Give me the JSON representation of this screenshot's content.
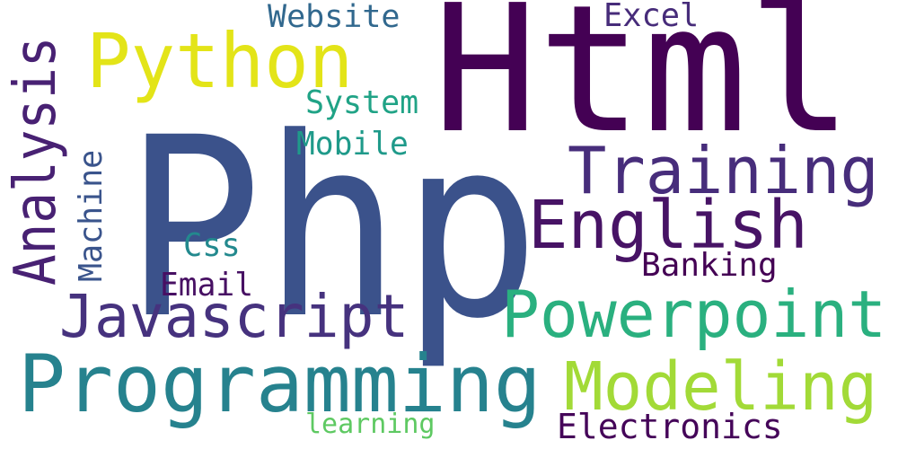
{
  "words": [
    {
      "key": "html",
      "text": "Html",
      "color": "#440154"
    },
    {
      "key": "php",
      "text": "Php",
      "color": "#3b528b"
    },
    {
      "key": "python",
      "text": "Python",
      "color": "#e3e418"
    },
    {
      "key": "analysis",
      "text": "Analysis",
      "color": "#482173"
    },
    {
      "key": "website",
      "text": "Website",
      "color": "#31688e"
    },
    {
      "key": "excel",
      "text": "Excel",
      "color": "#472c7a"
    },
    {
      "key": "system",
      "text": "System",
      "color": "#20a386"
    },
    {
      "key": "mobile",
      "text": "Mobile",
      "color": "#1f9a8a"
    },
    {
      "key": "training",
      "text": "Training",
      "color": "#472d7b"
    },
    {
      "key": "english",
      "text": "English",
      "color": "#471365"
    },
    {
      "key": "machine",
      "text": "Machine",
      "color": "#3a548c"
    },
    {
      "key": "css",
      "text": "Css",
      "color": "#23898e"
    },
    {
      "key": "banking",
      "text": "Banking",
      "color": "#440154"
    },
    {
      "key": "email",
      "text": "Email",
      "color": "#471063"
    },
    {
      "key": "javascript",
      "text": "Javascript",
      "color": "#46327e"
    },
    {
      "key": "powerpoint",
      "text": "Powerpoint",
      "color": "#2ab07f"
    },
    {
      "key": "programming",
      "text": "Programming",
      "color": "#26828e"
    },
    {
      "key": "modeling",
      "text": "Modeling",
      "color": "#a2da37"
    },
    {
      "key": "learning",
      "text": "learning",
      "color": "#5ec962"
    },
    {
      "key": "electronics",
      "text": "Electronics",
      "color": "#450559"
    }
  ]
}
